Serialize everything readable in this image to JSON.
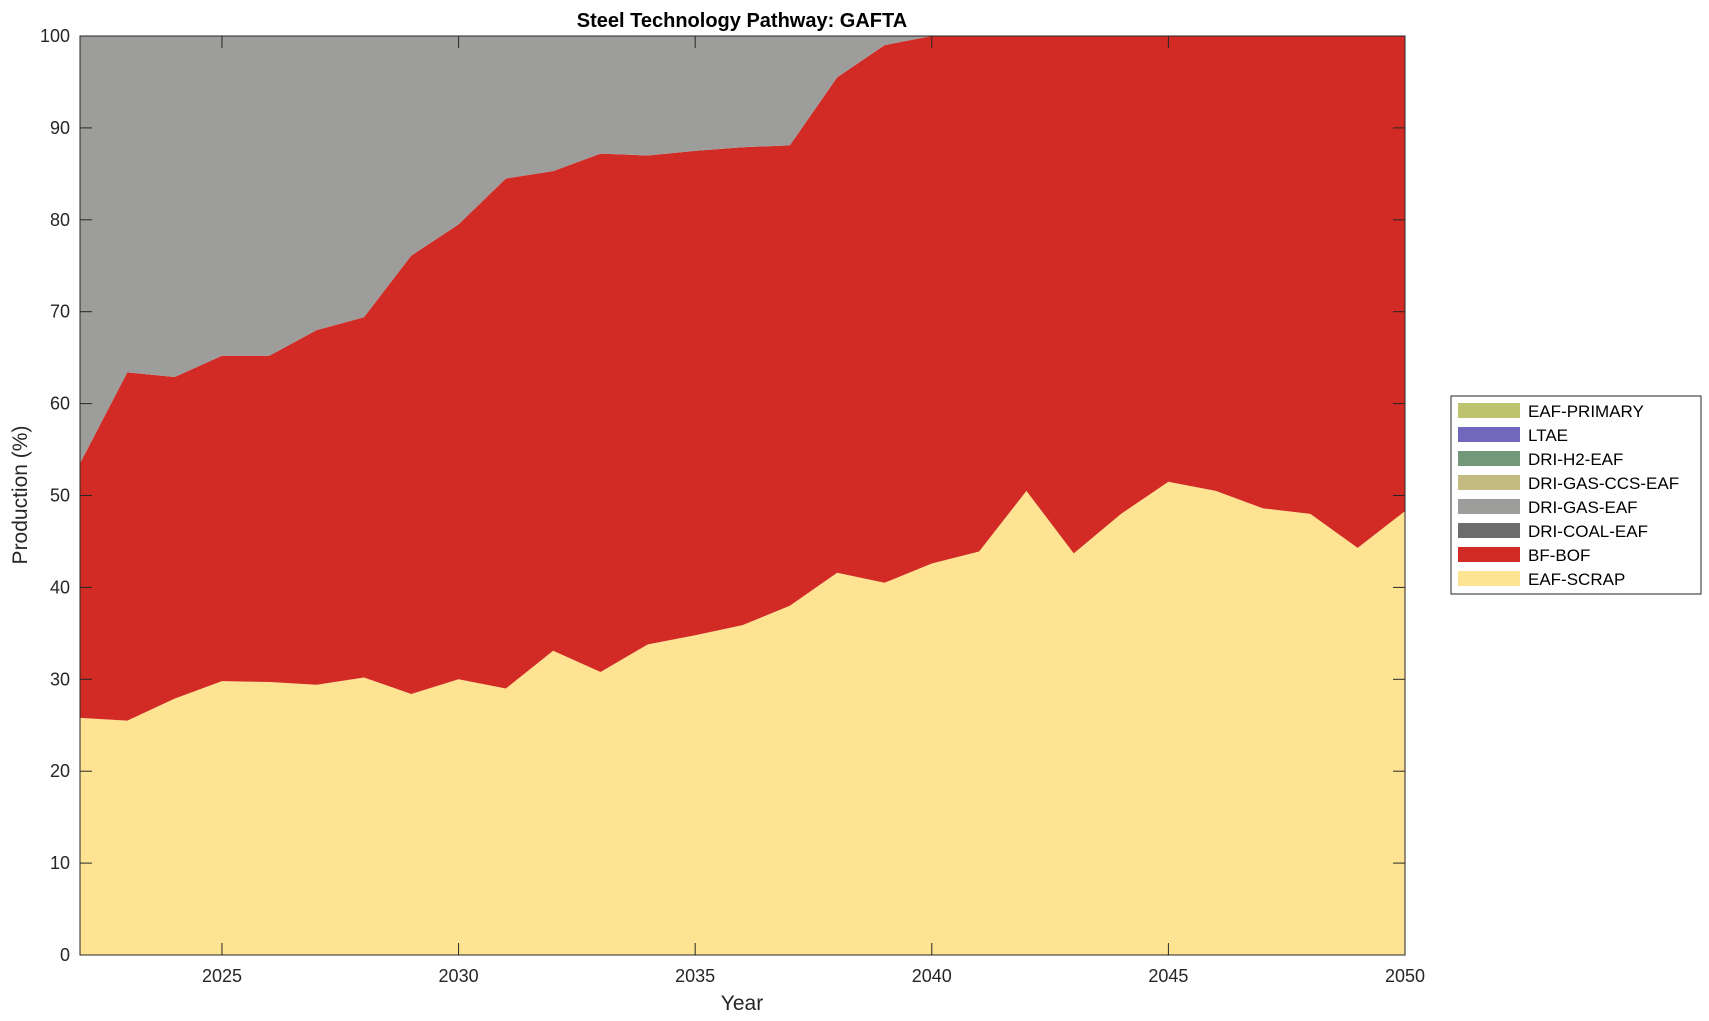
{
  "chart_data": {
    "type": "area",
    "stacked": true,
    "title": "Steel Technology Pathway: GAFTA",
    "xlabel": "Year",
    "ylabel": "Production (%)",
    "xlim": [
      2022,
      2050
    ],
    "ylim": [
      0,
      100
    ],
    "xticks": [
      2025,
      2030,
      2035,
      2040,
      2045,
      2050
    ],
    "yticks": [
      0,
      10,
      20,
      30,
      40,
      50,
      60,
      70,
      80,
      90,
      100
    ],
    "legend_position": "right",
    "x": [
      2022,
      2023,
      2024,
      2025,
      2026,
      2027,
      2028,
      2029,
      2030,
      2031,
      2032,
      2033,
      2034,
      2035,
      2036,
      2037,
      2038,
      2039,
      2040,
      2041,
      2042,
      2043,
      2044,
      2045,
      2046,
      2047,
      2048,
      2049,
      2050
    ],
    "series": [
      {
        "name": "EAF-SCRAP",
        "color": "#fee392",
        "values": [
          25.8,
          25.5,
          27.9,
          29.8,
          29.7,
          29.4,
          30.2,
          28.4,
          30.0,
          29.0,
          33.1,
          30.8,
          33.8,
          34.8,
          35.9,
          38.0,
          41.6,
          40.5,
          42.6,
          43.9,
          50.5,
          43.7,
          48.0,
          51.5,
          50.5,
          48.6,
          48.0,
          44.3,
          48.3
        ]
      },
      {
        "name": "BF-BOF",
        "color": "#d22b25",
        "values": [
          27.7,
          37.9,
          35.0,
          35.4,
          35.5,
          38.6,
          39.2,
          47.7,
          49.5,
          55.5,
          52.2,
          56.4,
          53.2,
          52.7,
          52.0,
          50.1,
          53.9,
          58.5,
          57.4,
          56.1,
          49.5,
          56.3,
          52.0,
          48.5,
          49.5,
          51.4,
          52.0,
          55.7,
          51.7
        ]
      },
      {
        "name": "DRI-COAL-EAF",
        "color": "#6c6c6c",
        "values": [
          0,
          0,
          0,
          0,
          0,
          0,
          0,
          0,
          0,
          0,
          0,
          0,
          0,
          0,
          0,
          0,
          0,
          0,
          0,
          0,
          0,
          0,
          0,
          0,
          0,
          0,
          0,
          0,
          0
        ]
      },
      {
        "name": "DRI-GAS-EAF",
        "color": "#9d9d9b",
        "values": [
          46.5,
          36.6,
          37.1,
          34.8,
          34.8,
          32.0,
          30.6,
          23.9,
          20.5,
          15.5,
          14.7,
          12.8,
          13.0,
          12.5,
          12.1,
          11.9,
          4.5,
          1.0,
          0,
          0,
          0,
          0,
          0,
          0,
          0,
          0,
          0,
          0,
          0
        ]
      },
      {
        "name": "DRI-GAS-CCS-EAF",
        "color": "#c4bb80",
        "values": [
          0,
          0,
          0,
          0,
          0,
          0,
          0,
          0,
          0,
          0,
          0,
          0,
          0,
          0,
          0,
          0,
          0,
          0,
          0,
          0,
          0,
          0,
          0,
          0,
          0,
          0,
          0,
          0,
          0
        ]
      },
      {
        "name": "DRI-H2-EAF",
        "color": "#729779",
        "values": [
          0,
          0,
          0,
          0,
          0,
          0,
          0,
          0,
          0,
          0,
          0,
          0,
          0,
          0,
          0,
          0,
          0,
          0,
          0,
          0,
          0,
          0,
          0,
          0,
          0,
          0,
          0,
          0,
          0
        ]
      },
      {
        "name": "LTAE",
        "color": "#7167bd",
        "values": [
          0,
          0,
          0,
          0,
          0,
          0,
          0,
          0,
          0,
          0,
          0,
          0,
          0,
          0,
          0,
          0,
          0,
          0,
          0,
          0,
          0,
          0,
          0,
          0,
          0,
          0,
          0,
          0,
          0
        ]
      },
      {
        "name": "EAF-PRIMARY",
        "color": "#bdc46d",
        "values": [
          0,
          0,
          0,
          0,
          0,
          0,
          0,
          0,
          0,
          0,
          0,
          0,
          0,
          0,
          0,
          0,
          0,
          0,
          0,
          0,
          0,
          0,
          0,
          0,
          0,
          0,
          0,
          0,
          0
        ]
      }
    ],
    "legend_order": [
      "EAF-PRIMARY",
      "LTAE",
      "DRI-H2-EAF",
      "DRI-GAS-CCS-EAF",
      "DRI-GAS-EAF",
      "DRI-COAL-EAF",
      "BF-BOF",
      "EAF-SCRAP"
    ]
  }
}
